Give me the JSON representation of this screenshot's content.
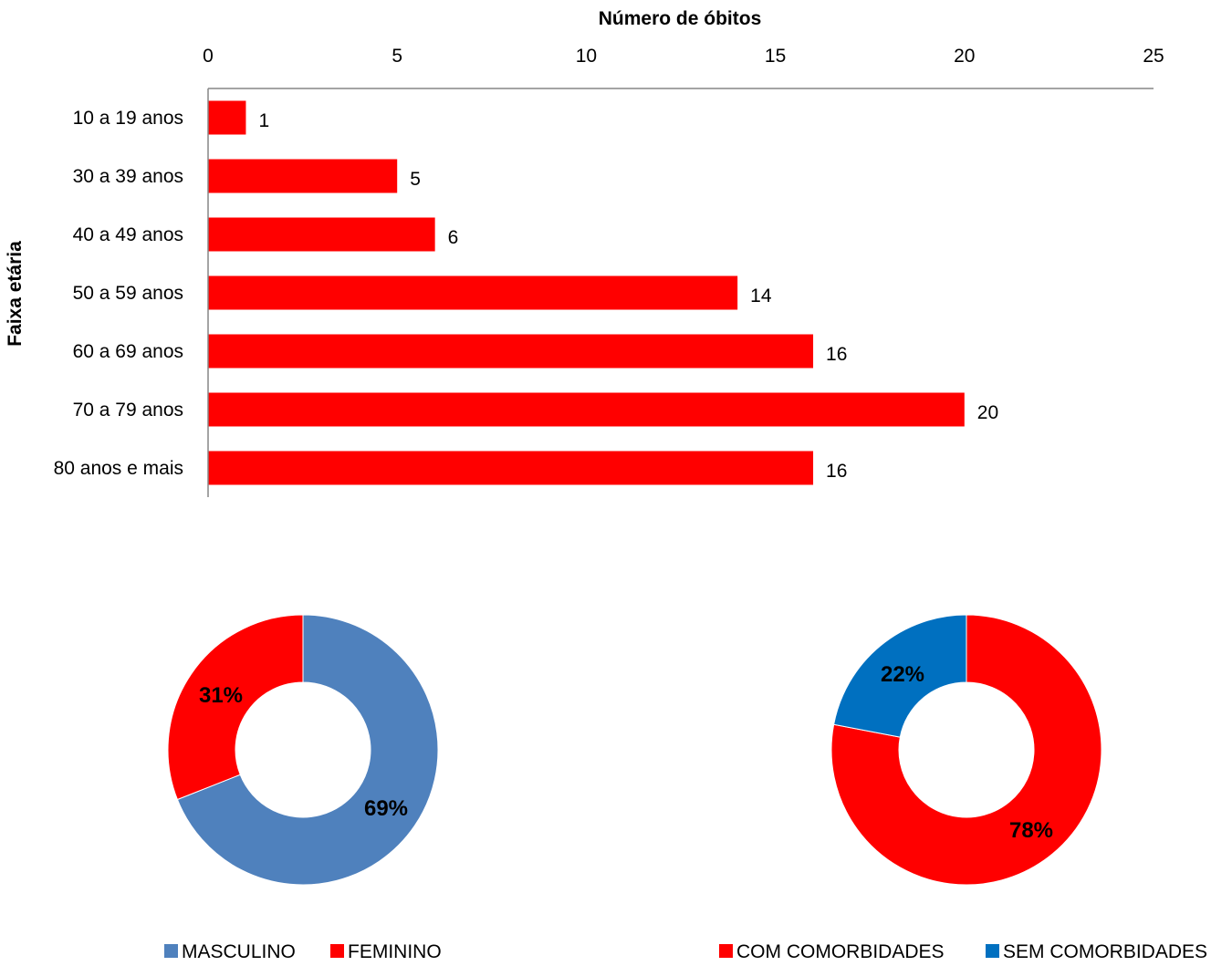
{
  "chart_data": [
    {
      "type": "bar",
      "orientation": "horizontal",
      "title": "",
      "xlabel": "Número de óbitos",
      "ylabel": "Faixa etária",
      "categories": [
        "10 a 19 anos",
        "30 a 39 anos",
        "40 a 49 anos",
        "50 a 59 anos",
        "60 a 69 anos",
        "70 a 79 anos",
        "80 anos e mais"
      ],
      "values": [
        1,
        5,
        6,
        14,
        16,
        20,
        16
      ],
      "xlim": [
        0,
        25
      ],
      "xticks": [
        0,
        5,
        10,
        15,
        20,
        25
      ],
      "x_axis_position": "top",
      "grid": false,
      "bar_color": "#ff0000",
      "data_labels": true
    },
    {
      "type": "pie",
      "style": "donut",
      "labels": [
        "MASCULINO",
        "FEMININO"
      ],
      "values": [
        69,
        31
      ],
      "value_labels": [
        "69%",
        "31%"
      ],
      "colors": [
        "#4f81bd",
        "#ff0000"
      ],
      "legend_position": "bottom"
    },
    {
      "type": "pie",
      "style": "donut",
      "labels": [
        "COM COMORBIDADES",
        "SEM COMORBIDADES"
      ],
      "values": [
        78,
        22
      ],
      "value_labels": [
        "78%",
        "22%"
      ],
      "colors": [
        "#ff0000",
        "#0070c0"
      ],
      "legend_position": "bottom"
    }
  ]
}
